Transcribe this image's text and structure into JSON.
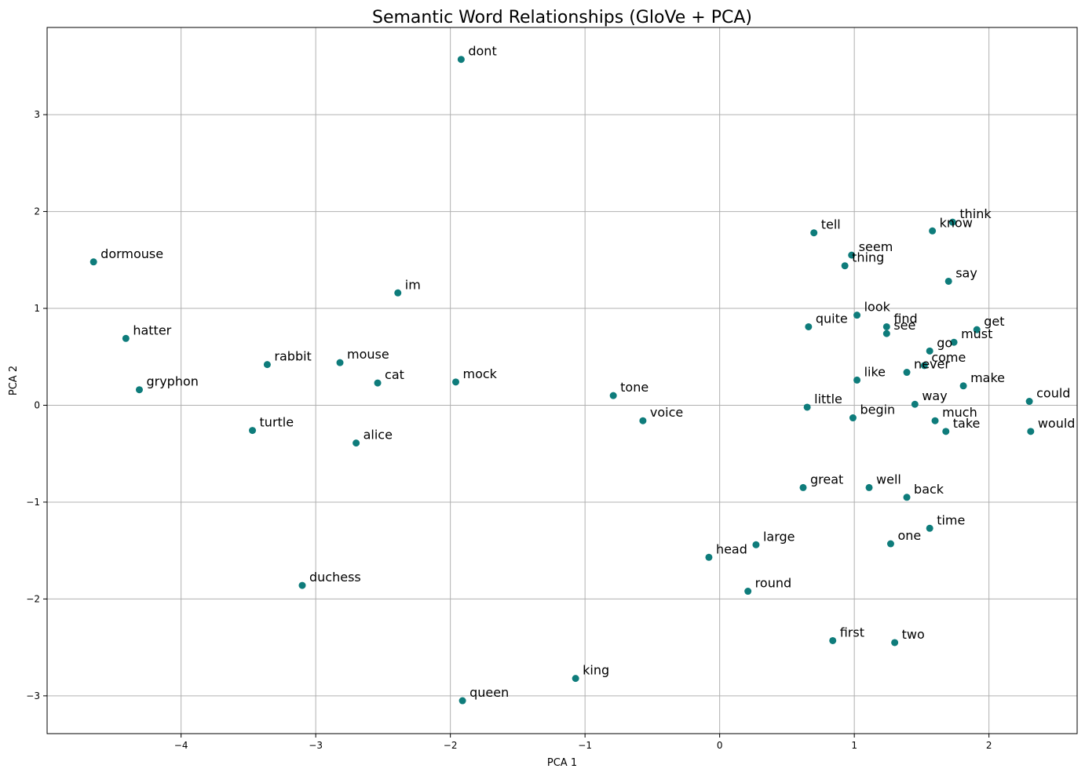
{
  "chart_data": {
    "type": "scatter",
    "title": "Semantic Word Relationships (GloVe + PCA)",
    "xlabel": "PCA 1",
    "ylabel": "PCA 2",
    "xlim": [
      -4.995,
      2.655
    ],
    "ylim": [
      -3.39,
      3.9
    ],
    "xticks": [
      -4,
      -3,
      -2,
      -1,
      0,
      1,
      2
    ],
    "yticks": [
      -3,
      -2,
      -1,
      0,
      1,
      2,
      3
    ],
    "grid": true,
    "point_color": "#0e7c7b",
    "points": [
      {
        "label": "dont",
        "x": -1.92,
        "y": 3.57
      },
      {
        "label": "dormouse",
        "x": -4.65,
        "y": 1.48
      },
      {
        "label": "hatter",
        "x": -4.41,
        "y": 0.69
      },
      {
        "label": "gryphon",
        "x": -4.31,
        "y": 0.16
      },
      {
        "label": "rabbit",
        "x": -3.36,
        "y": 0.42
      },
      {
        "label": "turtle",
        "x": -3.47,
        "y": -0.26
      },
      {
        "label": "mouse",
        "x": -2.82,
        "y": 0.44
      },
      {
        "label": "cat",
        "x": -2.54,
        "y": 0.23
      },
      {
        "label": "alice",
        "x": -2.7,
        "y": -0.39
      },
      {
        "label": "im",
        "x": -2.39,
        "y": 1.16
      },
      {
        "label": "mock",
        "x": -1.96,
        "y": 0.24
      },
      {
        "label": "duchess",
        "x": -3.1,
        "y": -1.86
      },
      {
        "label": "queen",
        "x": -1.91,
        "y": -3.05
      },
      {
        "label": "king",
        "x": -1.07,
        "y": -2.82
      },
      {
        "label": "tone",
        "x": -0.79,
        "y": 0.1
      },
      {
        "label": "voice",
        "x": -0.57,
        "y": -0.16
      },
      {
        "label": "head",
        "x": -0.08,
        "y": -1.57
      },
      {
        "label": "large",
        "x": 0.27,
        "y": -1.44
      },
      {
        "label": "round",
        "x": 0.21,
        "y": -1.92
      },
      {
        "label": "tell",
        "x": 0.7,
        "y": 1.78
      },
      {
        "label": "seem",
        "x": 0.98,
        "y": 1.55
      },
      {
        "label": "thing",
        "x": 0.93,
        "y": 1.44
      },
      {
        "label": "know",
        "x": 1.58,
        "y": 1.8
      },
      {
        "label": "think",
        "x": 1.73,
        "y": 1.89
      },
      {
        "label": "say",
        "x": 1.7,
        "y": 1.28
      },
      {
        "label": "look",
        "x": 1.02,
        "y": 0.93
      },
      {
        "label": "quite",
        "x": 0.66,
        "y": 0.81
      },
      {
        "label": "find",
        "x": 1.24,
        "y": 0.81
      },
      {
        "label": "see",
        "x": 1.24,
        "y": 0.74
      },
      {
        "label": "get",
        "x": 1.91,
        "y": 0.78
      },
      {
        "label": "must",
        "x": 1.74,
        "y": 0.65
      },
      {
        "label": "go",
        "x": 1.56,
        "y": 0.56
      },
      {
        "label": "come",
        "x": 1.52,
        "y": 0.41
      },
      {
        "label": "never",
        "x": 1.39,
        "y": 0.34
      },
      {
        "label": "like",
        "x": 1.02,
        "y": 0.26
      },
      {
        "label": "make",
        "x": 1.81,
        "y": 0.2
      },
      {
        "label": "little",
        "x": 0.65,
        "y": -0.02
      },
      {
        "label": "way",
        "x": 1.45,
        "y": 0.01
      },
      {
        "label": "could",
        "x": 2.3,
        "y": 0.04
      },
      {
        "label": "begin",
        "x": 0.99,
        "y": -0.13
      },
      {
        "label": "much",
        "x": 1.6,
        "y": -0.16
      },
      {
        "label": "take",
        "x": 1.68,
        "y": -0.27
      },
      {
        "label": "would",
        "x": 2.31,
        "y": -0.27
      },
      {
        "label": "great",
        "x": 0.62,
        "y": -0.85
      },
      {
        "label": "well",
        "x": 1.11,
        "y": -0.85
      },
      {
        "label": "back",
        "x": 1.39,
        "y": -0.95
      },
      {
        "label": "time",
        "x": 1.56,
        "y": -1.27
      },
      {
        "label": "one",
        "x": 1.27,
        "y": -1.43
      },
      {
        "label": "first",
        "x": 0.84,
        "y": -2.43
      },
      {
        "label": "two",
        "x": 1.3,
        "y": -2.45
      }
    ]
  }
}
